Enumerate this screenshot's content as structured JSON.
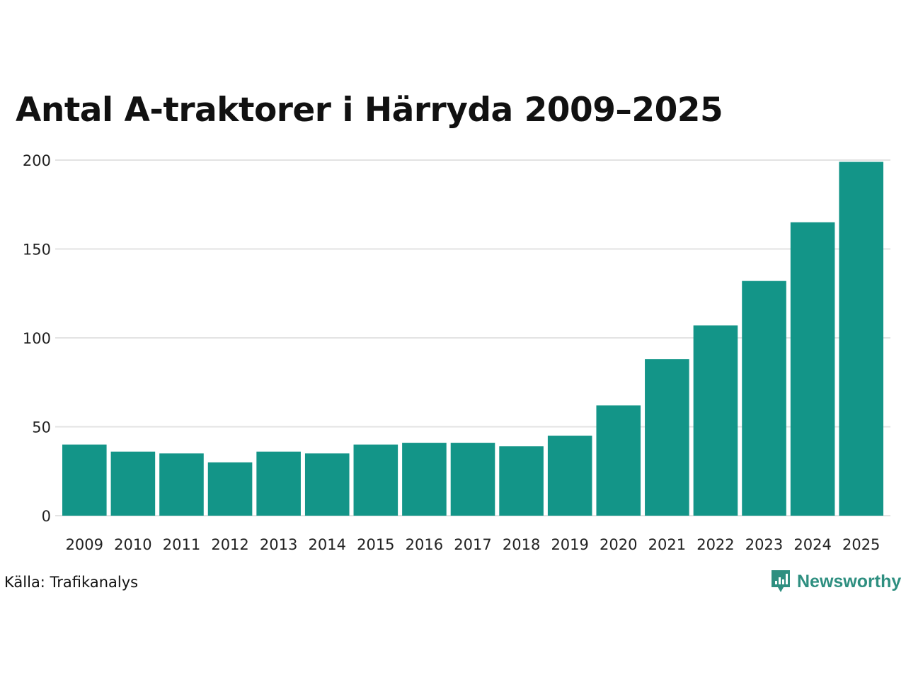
{
  "chart_data": {
    "type": "bar",
    "title": "Antal A-traktorer i Härryda 2009–2025",
    "xlabel": "",
    "ylabel": "",
    "categories": [
      "2009",
      "2010",
      "2011",
      "2012",
      "2013",
      "2014",
      "2015",
      "2016",
      "2017",
      "2018",
      "2019",
      "2020",
      "2021",
      "2022",
      "2023",
      "2024",
      "2025"
    ],
    "values": [
      40,
      36,
      35,
      30,
      36,
      35,
      40,
      41,
      41,
      39,
      45,
      62,
      88,
      107,
      132,
      165,
      199
    ],
    "ylim": [
      0,
      200
    ],
    "yticks": [
      0,
      50,
      100,
      150,
      200
    ],
    "grid": true,
    "bar_color": "#139588",
    "grid_color": "#e3e3e3"
  },
  "source": "Källa: Trafikanalys",
  "brand": {
    "name": "Newsworthy",
    "color": "#2e8f80",
    "icon": "newsworthy-logo-icon"
  }
}
